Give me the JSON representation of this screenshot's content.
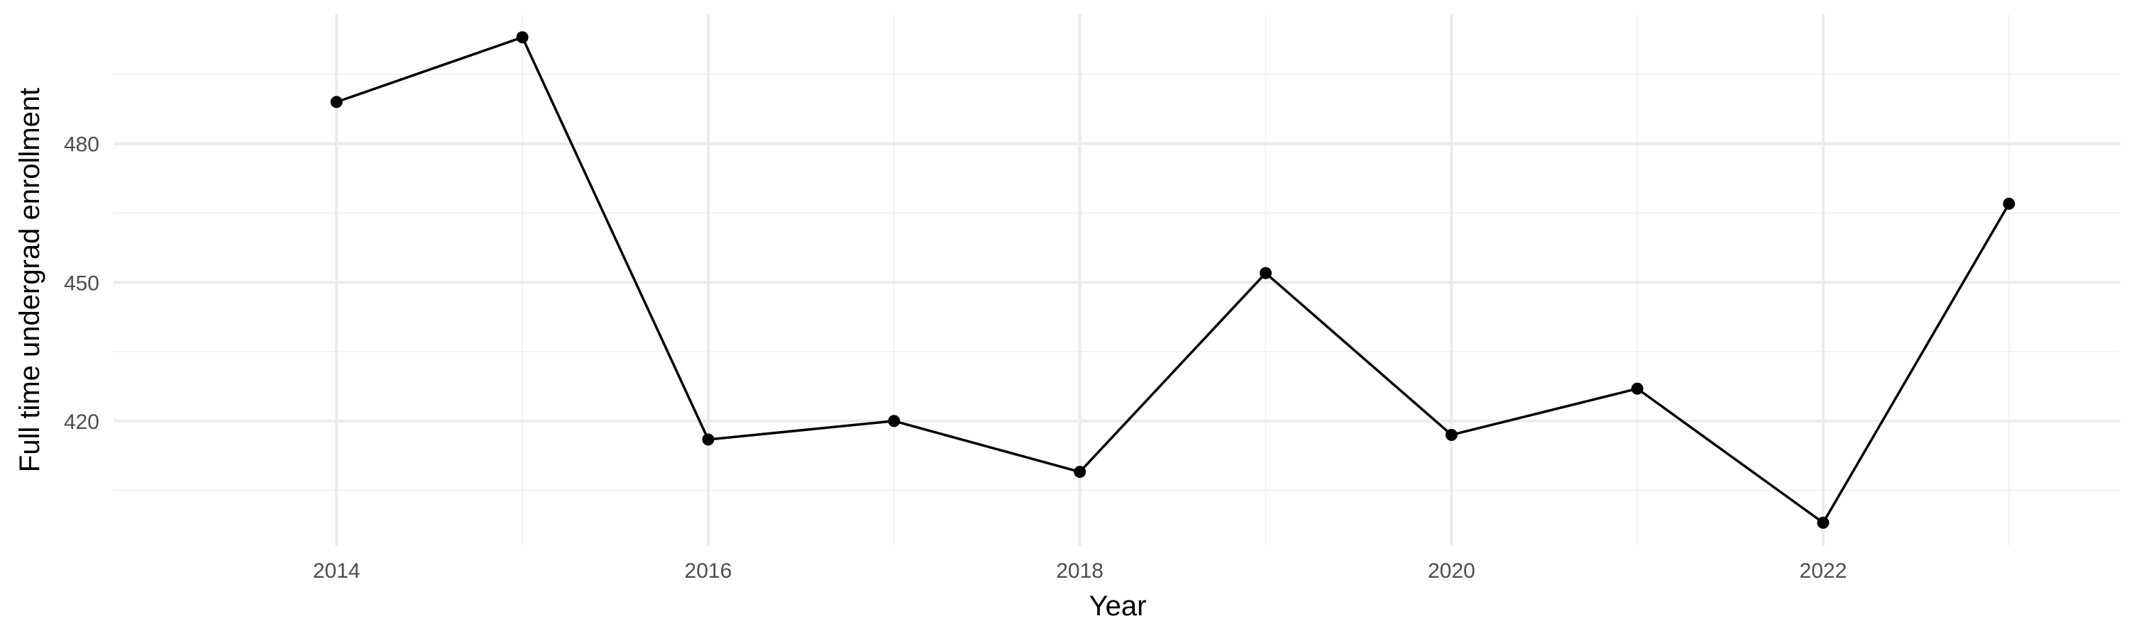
{
  "chart_data": {
    "type": "line",
    "title": "",
    "xlabel": "Year",
    "ylabel": "Full time undergrad enrollment",
    "x": [
      2014,
      2015,
      2016,
      2017,
      2018,
      2019,
      2020,
      2021,
      2022,
      2023
    ],
    "series": [
      {
        "values": [
          489,
          503,
          416,
          420,
          409,
          452,
          417,
          427,
          398,
          467
        ]
      }
    ],
    "xlim": [
      2012.8,
      2023.6
    ],
    "ylim": [
      393,
      508
    ],
    "x_ticks": [
      2014,
      2016,
      2018,
      2020,
      2022
    ],
    "x_tick_labels": [
      "2014",
      "2016",
      "2018",
      "2020",
      "2022"
    ],
    "y_ticks": [
      420,
      450,
      480
    ],
    "y_tick_labels": [
      "420",
      "450",
      "480"
    ],
    "x_minor_ticks": [
      2015,
      2017,
      2019,
      2021,
      2023
    ],
    "y_minor_ticks": [
      405,
      435,
      465,
      495
    ],
    "grid": true,
    "legend": "none",
    "colors": {
      "line": "#000000",
      "points": "#000000",
      "grid_major": "#ebebeb",
      "grid_minor": "#f3f3f3",
      "tick_text": "#4d4d4d",
      "axis_title": "#000000",
      "background": "#ffffff"
    }
  }
}
